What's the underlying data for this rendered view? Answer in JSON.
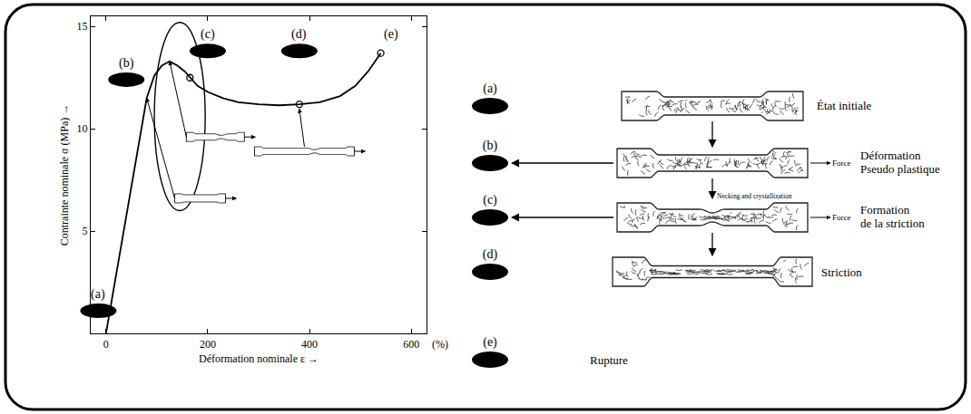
{
  "chart_data": {
    "type": "line",
    "x_label": "Déformation nominale ε →",
    "y_label": "Contrainte nominale σ (MPa) →",
    "x_unit": "(%)",
    "x": [
      0,
      20,
      40,
      60,
      80,
      95,
      110,
      125,
      140,
      155,
      165,
      180,
      200,
      230,
      260,
      300,
      340,
      380,
      420,
      460,
      490,
      515,
      540
    ],
    "values": [
      0,
      2.9,
      5.8,
      8.7,
      11.5,
      12.6,
      13.1,
      13.3,
      13.1,
      12.8,
      12.5,
      12.1,
      11.8,
      11.5,
      11.3,
      11.2,
      11.15,
      11.2,
      11.3,
      11.6,
      12.1,
      12.8,
      13.7
    ],
    "color": "#000000",
    "line_style": "solid",
    "marked_points": {
      "x": [
        165,
        380,
        540
      ],
      "values": [
        12.5,
        11.2,
        13.7
      ],
      "marker": "circle-open"
    },
    "point_labels": [
      {
        "text": "(a)",
        "x": -15,
        "y": 1.9
      },
      {
        "text": "(b)",
        "x": 40,
        "y": 13.2
      },
      {
        "text": "(c)",
        "x": 200,
        "y": 14.6
      },
      {
        "text": "(d)",
        "x": 380,
        "y": 14.6
      },
      {
        "text": "(e)",
        "x": 560,
        "y": 14.6
      }
    ],
    "xlim": [
      -30,
      630
    ],
    "ylim": [
      0,
      15.5
    ],
    "xticks": [
      0,
      200,
      400,
      600
    ],
    "yticks": [
      5,
      10,
      15
    ],
    "grid": false
  },
  "diagram": {
    "stages": [
      {
        "label": "(a)",
        "caption": [
          "État initiale"
        ]
      },
      {
        "label": "(b)",
        "caption": [
          "Déformation",
          "Pseudo plastique"
        ],
        "force": "Force"
      },
      {
        "label": "(c)",
        "caption": [
          "Formation",
          "de la striction"
        ],
        "force": "Force",
        "note": "Necking and crystallization"
      },
      {
        "label": "(d)",
        "caption": [
          "Striction"
        ]
      },
      {
        "label": "(e)",
        "caption": [
          "Rupture"
        ]
      }
    ]
  }
}
